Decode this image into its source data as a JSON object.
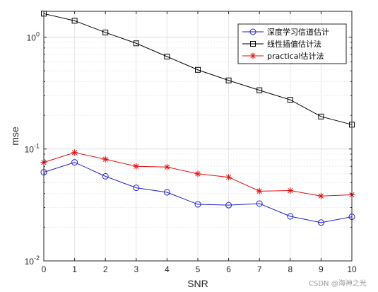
{
  "chart_data": {
    "type": "line",
    "xlabel": "SNR",
    "ylabel": "mse",
    "yscale": "log",
    "xlim": [
      0,
      10
    ],
    "ylim": [
      0.01,
      1.7
    ],
    "grid": true,
    "legend_position": "top-right",
    "x": [
      0,
      1,
      2,
      3,
      4,
      5,
      6,
      7,
      8,
      9,
      10
    ],
    "x_tick_labels": [
      "0",
      "1",
      "2",
      "3",
      "4",
      "5",
      "6",
      "7",
      "8",
      "9",
      "10"
    ],
    "y_ticks": [
      {
        "value": 0.01,
        "base": "10",
        "exp": "-2"
      },
      {
        "value": 0.1,
        "base": "10",
        "exp": "-1"
      },
      {
        "value": 1,
        "base": "10",
        "exp": "0"
      }
    ],
    "series": [
      {
        "name": "深度学习信道估计",
        "color": "#1f1fd0",
        "marker": "circle",
        "values": [
          0.062,
          0.076,
          0.057,
          0.045,
          0.041,
          0.032,
          0.0315,
          0.0325,
          0.025,
          0.022,
          0.0248
        ]
      },
      {
        "name": "线性插值估计法",
        "color": "#000000",
        "marker": "square",
        "values": [
          1.62,
          1.4,
          1.1,
          0.88,
          0.67,
          0.51,
          0.41,
          0.335,
          0.275,
          0.195,
          0.165
        ]
      },
      {
        "name": "practical估计法",
        "color": "#e01010",
        "marker": "star",
        "values": [
          0.076,
          0.093,
          0.081,
          0.07,
          0.069,
          0.06,
          0.056,
          0.042,
          0.0425,
          0.038,
          0.039
        ]
      }
    ]
  },
  "watermark": "CSDN @海神之光"
}
